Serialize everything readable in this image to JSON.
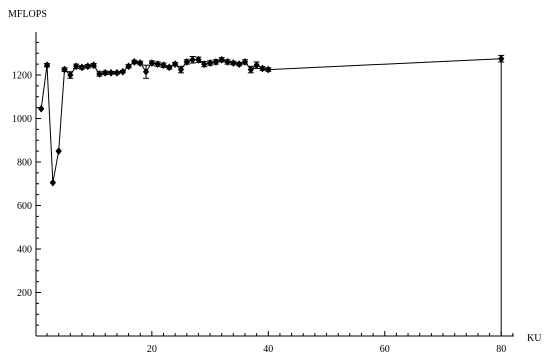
{
  "chart_data": {
    "type": "line",
    "title": "",
    "xlabel": "KU",
    "ylabel": "MFLOPS",
    "xlim": [
      0,
      82
    ],
    "ylim": [
      0,
      1380
    ],
    "x_ticks": [
      20,
      40,
      60,
      80
    ],
    "y_ticks": [
      200,
      400,
      600,
      800,
      1000,
      1200
    ],
    "x_tick_labels": [
      "20",
      "40",
      "60",
      "80"
    ],
    "y_tick_labels": [
      "200",
      "400",
      "600",
      "800",
      "1000",
      "1200"
    ],
    "grid": false,
    "legend": "none",
    "marker": "diamond",
    "error_bars": true,
    "series": [
      {
        "x": [
          1,
          2,
          3,
          4,
          5,
          6,
          7,
          8,
          9,
          10,
          11,
          12,
          13,
          14,
          15,
          16,
          17,
          18,
          19,
          20,
          21,
          22,
          23,
          24,
          25,
          26,
          27,
          28,
          29,
          30,
          31,
          32,
          33,
          34,
          35,
          36,
          37,
          38,
          39,
          40,
          80
        ],
        "y": [
          1045,
          1245,
          705,
          850,
          1225,
          1200,
          1240,
          1235,
          1240,
          1245,
          1205,
          1210,
          1210,
          1210,
          1215,
          1240,
          1260,
          1255,
          1215,
          1255,
          1250,
          1245,
          1235,
          1250,
          1225,
          1260,
          1270,
          1270,
          1250,
          1255,
          1260,
          1270,
          1260,
          1255,
          1250,
          1260,
          1225,
          1245,
          1230,
          1225,
          1275
        ],
        "err": [
          0,
          8,
          0,
          0,
          8,
          15,
          10,
          8,
          8,
          8,
          10,
          8,
          6,
          6,
          6,
          8,
          8,
          8,
          30,
          10,
          10,
          10,
          8,
          8,
          15,
          10,
          15,
          12,
          12,
          10,
          10,
          10,
          10,
          8,
          8,
          10,
          15,
          15,
          8,
          8,
          15
        ]
      }
    ]
  }
}
